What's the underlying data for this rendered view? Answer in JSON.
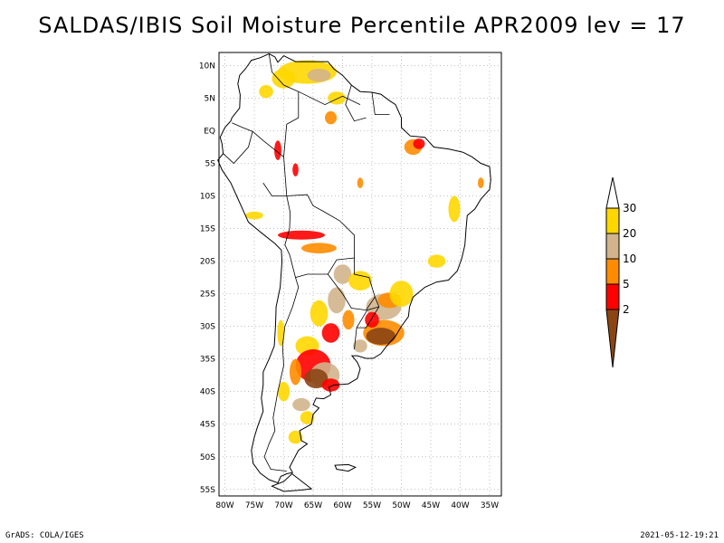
{
  "title": "SALDAS/IBIS Soil Moisture Percentile APR2009 lev = 17",
  "footer": {
    "left": "GrADS: COLA/IGES",
    "right": "2021-05-12-19:21"
  },
  "map": {
    "lat_labels": [
      "10N",
      "5N",
      "EQ",
      "5S",
      "10S",
      "15S",
      "20S",
      "25S",
      "30S",
      "35S",
      "40S",
      "45S",
      "50S",
      "55S"
    ],
    "lat_values": [
      10,
      5,
      0,
      -5,
      -10,
      -15,
      -20,
      -25,
      -30,
      -35,
      -40,
      -45,
      -50,
      -55
    ],
    "lon_labels": [
      "80W",
      "75W",
      "70W",
      "65W",
      "60W",
      "55W",
      "50W",
      "45W",
      "40W",
      "35W"
    ],
    "lon_values": [
      -80,
      -75,
      -70,
      -65,
      -60,
      -55,
      -50,
      -45,
      -40,
      -35
    ],
    "extent": {
      "lon": [
        -81,
        -33
      ],
      "lat": [
        -56,
        12
      ]
    },
    "grid": true
  },
  "legend": {
    "labels": [
      "2",
      "5",
      "10",
      "20",
      "30"
    ],
    "colors": [
      "#8b4513",
      "#ff0000",
      "#ff8c00",
      "#d2b48c",
      "#ffd700"
    ],
    "top_color": "#ffffff",
    "placement": "right"
  }
}
